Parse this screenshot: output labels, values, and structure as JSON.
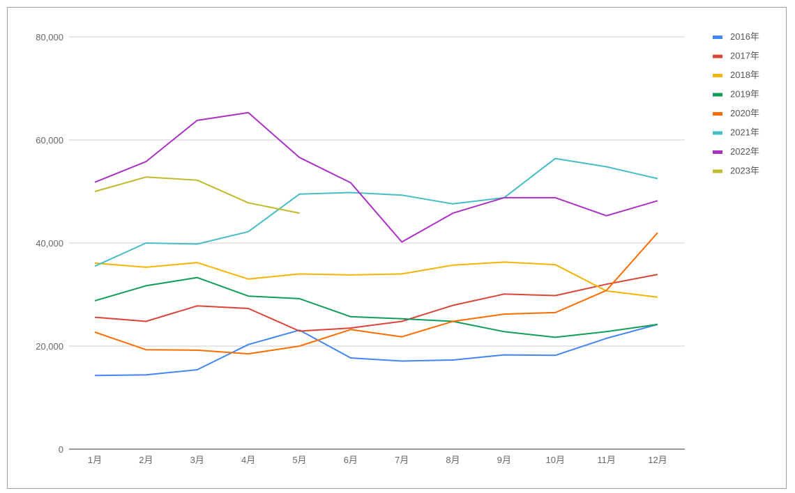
{
  "chart_data": {
    "type": "line",
    "title": "",
    "xlabel": "",
    "ylabel": "",
    "categories": [
      "1月",
      "2月",
      "3月",
      "4月",
      "5月",
      "6月",
      "7月",
      "8月",
      "9月",
      "10月",
      "11月",
      "12月"
    ],
    "ylim": [
      0,
      80000
    ],
    "yticks": [
      0,
      20000,
      40000,
      60000,
      80000
    ],
    "ytick_labels": [
      "0",
      "20,000",
      "40,000",
      "60,000",
      "80,000"
    ],
    "grid": true,
    "legend_position": "right",
    "series": [
      {
        "name": "2016年",
        "color": "#4285f4",
        "values": [
          14300,
          14400,
          15400,
          20300,
          23100,
          17700,
          17100,
          17300,
          18300,
          18200,
          21500,
          24200
        ]
      },
      {
        "name": "2017年",
        "color": "#db4437",
        "values": [
          25600,
          24800,
          27800,
          27300,
          22900,
          23500,
          24800,
          27900,
          30100,
          29800,
          32000,
          33900
        ]
      },
      {
        "name": "2018年",
        "color": "#f4b400",
        "values": [
          36100,
          35300,
          36200,
          33000,
          34000,
          33800,
          34000,
          35700,
          36300,
          35800,
          30700,
          29500
        ]
      },
      {
        "name": "2019年",
        "color": "#0f9d58",
        "values": [
          28800,
          31700,
          33300,
          29700,
          29200,
          25700,
          25300,
          24800,
          22800,
          21700,
          22800,
          24200
        ]
      },
      {
        "name": "2020年",
        "color": "#ff6d00",
        "values": [
          22700,
          19300,
          19200,
          18500,
          20000,
          23200,
          21800,
          24800,
          26200,
          26500,
          30800,
          42000
        ]
      },
      {
        "name": "2021年",
        "color": "#46bdc6",
        "values": [
          35500,
          40000,
          39800,
          42200,
          49500,
          49800,
          49300,
          47600,
          48800,
          56400,
          54800,
          52500
        ]
      },
      {
        "name": "2022年",
        "color": "#ab30c4",
        "values": [
          51800,
          55800,
          63800,
          65300,
          56600,
          51700,
          40200,
          45800,
          48800,
          48800,
          45300,
          48200
        ]
      },
      {
        "name": "2023年",
        "color": "#c0ba2b",
        "values": [
          50000,
          52800,
          52200,
          47800,
          45800,
          null,
          null,
          null,
          null,
          null,
          null,
          null
        ]
      }
    ]
  }
}
